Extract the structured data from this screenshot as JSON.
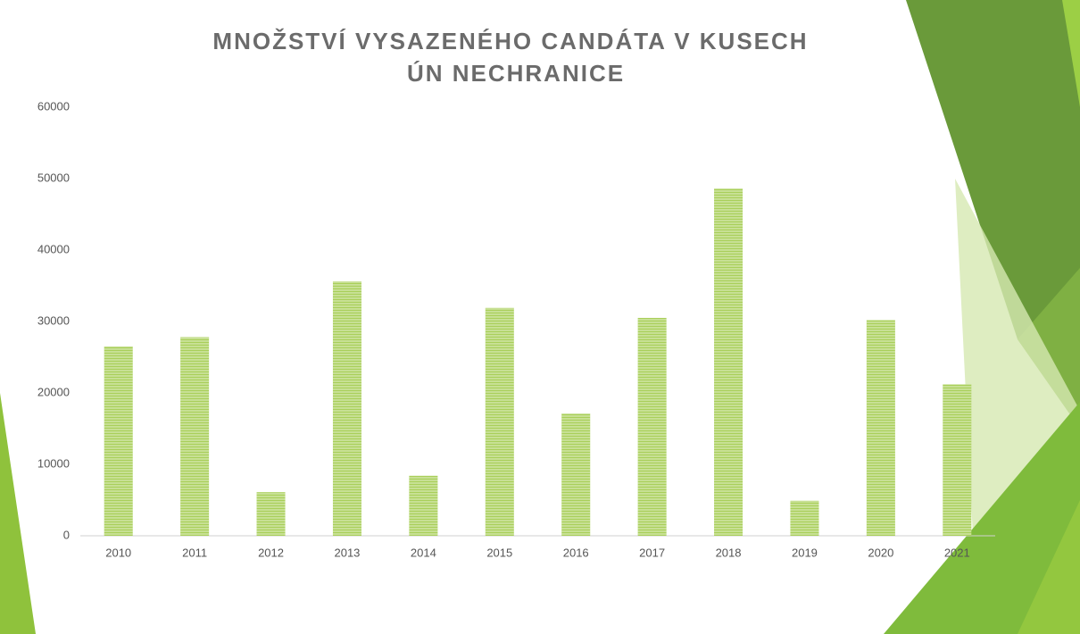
{
  "chart_data": {
    "type": "bar",
    "title": "MNOŽSTVÍ VYSAZENÉHO CANDÁTA V KUSECH",
    "subtitle": "ÚN NECHRANICE",
    "categories": [
      "2010",
      "2011",
      "2012",
      "2013",
      "2014",
      "2015",
      "2016",
      "2017",
      "2018",
      "2019",
      "2020",
      "2021"
    ],
    "values": [
      26500,
      27800,
      6100,
      35600,
      8400,
      31900,
      17100,
      30500,
      48600,
      4900,
      30200,
      21200
    ],
    "color": "#a9cf5a",
    "ylim": [
      0,
      60000
    ],
    "yticks": [
      0,
      10000,
      20000,
      30000,
      40000,
      50000,
      60000
    ],
    "grid": false
  }
}
